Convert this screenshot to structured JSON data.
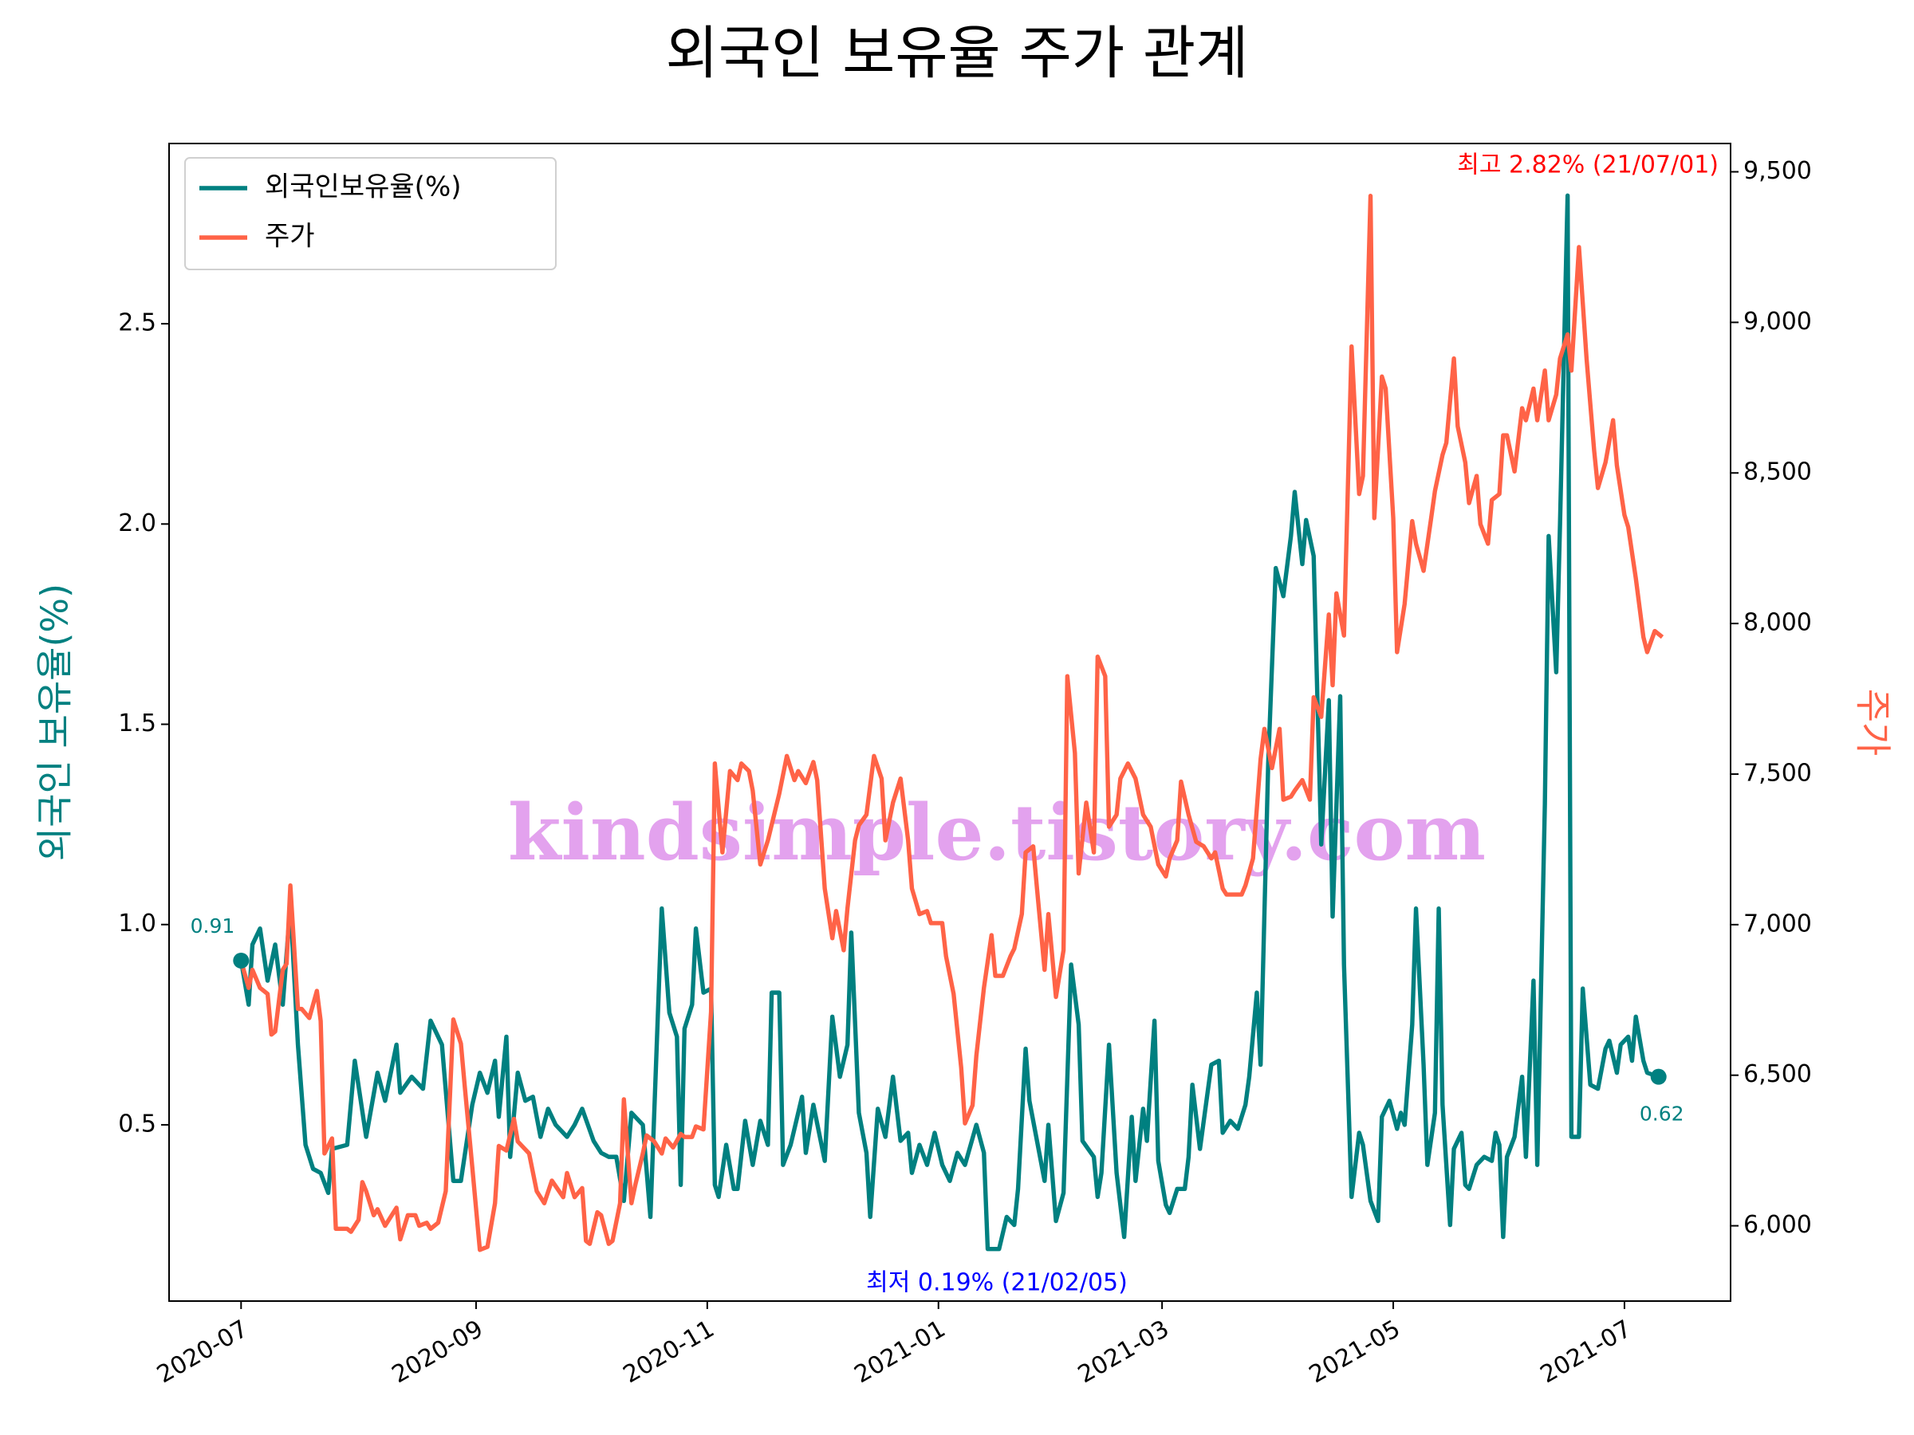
{
  "chart_data": {
    "type": "line",
    "title": "외국인 보유율 주가 관계",
    "ylabel": "외국인 보유율(%)",
    "y2label": "주가",
    "watermark": "kindsimple.tistory.com",
    "annotations": [
      {
        "text": "최고 2.82% (21/07/01)",
        "color": "#ff0000"
      },
      {
        "text": "최저 0.19% (21/02/05)",
        "color": "#0000ff"
      }
    ],
    "legend": "upper left",
    "xlim": [
      "2020-06-12",
      "2021-07-29"
    ],
    "xticks": [
      {
        "value": "2020-07-01",
        "label": "2020-07"
      },
      {
        "value": "2020-09-01",
        "label": "2020-09"
      },
      {
        "value": "2020-11-01",
        "label": "2020-11"
      },
      {
        "value": "2021-01-01",
        "label": "2021-01"
      },
      {
        "value": "2021-03-01",
        "label": "2021-03"
      },
      {
        "value": "2021-05-01",
        "label": "2021-05"
      },
      {
        "value": "2021-07-01",
        "label": "2021-07"
      }
    ],
    "ylim": [
      0.06,
      2.95
    ],
    "yticks": [
      0.5,
      {
        "value": 1,
        "label": "1.0"
      },
      1.5,
      {
        "value": 2,
        "label": "2.0"
      },
      2.5
    ],
    "y2lim": [
      5750,
      9594
    ],
    "y2ticks": [
      {
        "value": 6000,
        "label": "6,000"
      },
      {
        "value": 6500,
        "label": "6,500"
      },
      {
        "value": 7000,
        "label": "7,000"
      },
      {
        "value": 7500,
        "label": "7,500"
      },
      {
        "value": 8000,
        "label": "8,000"
      },
      {
        "value": 8500,
        "label": "8,500"
      },
      {
        "value": 9000,
        "label": "9,000"
      },
      {
        "value": 9500,
        "label": "9,500"
      }
    ],
    "series": [
      {
        "name": "외국인보유율(%)",
        "color": "#008080",
        "axis": "y",
        "x": [
          "2020-07-01",
          "2020-07-03",
          "2020-07-04",
          "2020-07-06",
          "2020-07-08",
          "2020-07-10",
          "2020-07-12",
          "2020-07-14",
          "2020-07-16",
          "2020-07-18",
          "2020-07-20",
          "2020-07-22",
          "2020-07-24",
          "2020-07-25",
          "2020-07-29",
          "2020-07-31",
          "2020-08-03",
          "2020-08-06",
          "2020-08-08",
          "2020-08-11",
          "2020-08-12",
          "2020-08-15",
          "2020-08-18",
          "2020-08-20",
          "2020-08-23",
          "2020-08-26",
          "2020-08-28",
          "2020-08-31",
          "2020-09-02",
          "2020-09-04",
          "2020-09-06",
          "2020-09-07",
          "2020-09-09",
          "2020-09-10",
          "2020-09-12",
          "2020-09-14",
          "2020-09-16",
          "2020-09-18",
          "2020-09-20",
          "2020-09-22",
          "2020-09-25",
          "2020-09-27",
          "2020-09-29",
          "2020-10-02",
          "2020-10-04",
          "2020-10-06",
          "2020-10-08",
          "2020-10-10",
          "2020-10-12",
          "2020-10-15",
          "2020-10-17",
          "2020-10-20",
          "2020-10-22",
          "2020-10-24",
          "2020-10-25",
          "2020-10-26",
          "2020-10-28",
          "2020-10-29",
          "2020-10-31",
          "2020-11-02",
          "2020-11-03",
          "2020-11-04",
          "2020-11-06",
          "2020-11-08",
          "2020-11-09",
          "2020-11-11",
          "2020-11-13",
          "2020-11-15",
          "2020-11-17",
          "2020-11-18",
          "2020-11-20",
          "2020-11-21",
          "2020-11-23",
          "2020-11-26",
          "2020-11-27",
          "2020-11-29",
          "2020-12-02",
          "2020-12-04",
          "2020-12-06",
          "2020-12-08",
          "2020-12-09",
          "2020-12-11",
          "2020-12-13",
          "2020-12-14",
          "2020-12-16",
          "2020-12-18",
          "2020-12-20",
          "2020-12-22",
          "2020-12-24",
          "2020-12-25",
          "2020-12-27",
          "2020-12-29",
          "2020-12-31",
          "2021-01-02",
          "2021-01-04",
          "2021-01-06",
          "2021-01-08",
          "2021-01-11",
          "2021-01-13",
          "2021-01-14",
          "2021-01-17",
          "2021-01-19",
          "2021-01-21",
          "2021-01-22",
          "2021-01-24",
          "2021-01-25",
          "2021-01-29",
          "2021-01-30",
          "2021-02-01",
          "2021-02-03",
          "2021-02-05",
          "2021-02-07",
          "2021-02-08",
          "2021-02-11",
          "2021-02-12",
          "2021-02-13",
          "2021-02-15",
          "2021-02-17",
          "2021-02-19",
          "2021-02-21",
          "2021-02-22",
          "2021-02-24",
          "2021-02-25",
          "2021-02-27",
          "2021-02-28",
          "2021-03-02",
          "2021-03-03",
          "2021-03-05",
          "2021-03-07",
          "2021-03-08",
          "2021-03-09",
          "2021-03-11",
          "2021-03-14",
          "2021-03-16",
          "2021-03-17",
          "2021-03-19",
          "2021-03-21",
          "2021-03-23",
          "2021-03-24",
          "2021-03-26",
          "2021-03-27",
          "2021-03-29",
          "2021-03-31",
          "2021-04-02",
          "2021-04-04",
          "2021-04-05",
          "2021-04-07",
          "2021-04-08",
          "2021-04-10",
          "2021-04-12",
          "2021-04-14",
          "2021-04-15",
          "2021-04-17",
          "2021-04-18",
          "2021-04-20",
          "2021-04-22",
          "2021-04-23",
          "2021-04-25",
          "2021-04-27",
          "2021-04-28",
          "2021-04-30",
          "2021-05-02",
          "2021-05-03",
          "2021-05-04",
          "2021-05-06",
          "2021-05-07",
          "2021-05-09",
          "2021-05-10",
          "2021-05-12",
          "2021-05-13",
          "2021-05-14",
          "2021-05-16",
          "2021-05-17",
          "2021-05-19",
          "2021-05-20",
          "2021-05-21",
          "2021-05-23",
          "2021-05-25",
          "2021-05-27",
          "2021-05-28",
          "2021-05-29",
          "2021-05-30",
          "2021-05-31",
          "2021-06-02",
          "2021-06-04",
          "2021-06-05",
          "2021-06-07",
          "2021-06-08",
          "2021-06-10",
          "2021-06-11",
          "2021-06-13",
          "2021-06-14",
          "2021-06-16",
          "2021-06-17",
          "2021-06-19",
          "2021-06-20",
          "2021-06-22",
          "2021-06-24",
          "2021-06-26",
          "2021-06-27",
          "2021-06-29",
          "2021-06-30",
          "2021-07-02",
          "2021-07-03",
          "2021-07-04",
          "2021-07-06",
          "2021-07-07",
          "2021-07-10"
        ],
        "values": [
          0.91,
          0.8,
          0.95,
          0.99,
          0.86,
          0.95,
          0.8,
          1.05,
          0.7,
          0.45,
          0.39,
          0.38,
          0.33,
          0.44,
          0.45,
          0.66,
          0.47,
          0.63,
          0.56,
          0.7,
          0.58,
          0.62,
          0.59,
          0.76,
          0.7,
          0.36,
          0.36,
          0.55,
          0.63,
          0.58,
          0.66,
          0.52,
          0.72,
          0.42,
          0.63,
          0.56,
          0.57,
          0.47,
          0.54,
          0.5,
          0.47,
          0.5,
          0.54,
          0.46,
          0.43,
          0.42,
          0.42,
          0.31,
          0.53,
          0.5,
          0.27,
          1.04,
          0.78,
          0.72,
          0.35,
          0.74,
          0.8,
          0.99,
          0.83,
          0.84,
          0.35,
          0.32,
          0.45,
          0.34,
          0.34,
          0.51,
          0.4,
          0.51,
          0.45,
          0.83,
          0.83,
          0.4,
          0.45,
          0.57,
          0.43,
          0.55,
          0.41,
          0.77,
          0.62,
          0.7,
          0.98,
          0.53,
          0.43,
          0.27,
          0.54,
          0.47,
          0.62,
          0.46,
          0.48,
          0.38,
          0.45,
          0.4,
          0.48,
          0.4,
          0.36,
          0.43,
          0.4,
          0.5,
          0.43,
          0.19,
          0.19,
          0.27,
          0.25,
          0.34,
          0.69,
          0.56,
          0.36,
          0.5,
          0.26,
          0.33,
          0.9,
          0.75,
          0.46,
          0.42,
          0.32,
          0.38,
          0.7,
          0.38,
          0.22,
          0.52,
          0.36,
          0.54,
          0.46,
          0.76,
          0.41,
          0.3,
          0.28,
          0.34,
          0.34,
          0.42,
          0.6,
          0.44,
          0.65,
          0.66,
          0.48,
          0.51,
          0.49,
          0.55,
          0.62,
          0.83,
          0.65,
          1.4,
          1.89,
          1.82,
          1.97,
          2.08,
          1.9,
          2.01,
          1.92,
          1.2,
          1.56,
          1.02,
          1.57,
          0.9,
          0.32,
          0.48,
          0.45,
          0.31,
          0.26,
          0.52,
          0.56,
          0.49,
          0.53,
          0.5,
          0.75,
          1.04,
          0.65,
          0.4,
          0.53,
          1.04,
          0.55,
          0.25,
          0.44,
          0.48,
          0.35,
          0.34,
          0.4,
          0.42,
          0.41,
          0.48,
          0.45,
          0.22,
          0.42,
          0.47,
          0.62,
          0.42,
          0.86,
          0.4,
          1.3,
          1.97,
          1.63,
          2.0,
          2.82,
          0.47,
          0.47,
          0.84,
          0.6,
          0.59,
          0.69,
          0.71,
          0.63,
          0.7,
          0.72,
          0.66,
          0.77,
          0.66,
          0.63,
          0.62
        ]
      },
      {
        "name": "주가",
        "color": "#ff6347",
        "axis": "y2",
        "x": [
          "2020-07-01",
          "2020-07-03",
          "2020-07-04",
          "2020-07-06",
          "2020-07-08",
          "2020-07-09",
          "2020-07-10",
          "2020-07-12",
          "2020-07-13",
          "2020-07-14",
          "2020-07-16",
          "2020-07-17",
          "2020-07-19",
          "2020-07-21",
          "2020-07-22",
          "2020-07-23",
          "2020-07-25",
          "2020-07-26",
          "2020-07-29",
          "2020-07-30",
          "2020-08-01",
          "2020-08-02",
          "2020-08-03",
          "2020-08-05",
          "2020-08-06",
          "2020-08-08",
          "2020-08-11",
          "2020-08-12",
          "2020-08-14",
          "2020-08-16",
          "2020-08-17",
          "2020-08-19",
          "2020-08-20",
          "2020-08-22",
          "2020-08-24",
          "2020-08-26",
          "2020-08-28",
          "2020-08-29",
          "2020-08-31",
          "2020-09-02",
          "2020-09-04",
          "2020-09-06",
          "2020-09-07",
          "2020-09-09",
          "2020-09-11",
          "2020-09-12",
          "2020-09-15",
          "2020-09-17",
          "2020-09-19",
          "2020-09-21",
          "2020-09-24",
          "2020-09-25",
          "2020-09-27",
          "2020-09-29",
          "2020-09-30",
          "2020-10-01",
          "2020-10-03",
          "2020-10-04",
          "2020-10-06",
          "2020-10-07",
          "2020-10-09",
          "2020-10-10",
          "2020-10-12",
          "2020-10-13",
          "2020-10-15",
          "2020-10-16",
          "2020-10-18",
          "2020-10-20",
          "2020-10-21",
          "2020-10-23",
          "2020-10-25",
          "2020-10-26",
          "2020-10-28",
          "2020-10-29",
          "2020-10-31",
          "2020-11-02",
          "2020-11-03",
          "2020-11-05",
          "2020-11-07",
          "2020-11-09",
          "2020-11-10",
          "2020-11-12",
          "2020-11-13",
          "2020-11-15",
          "2020-11-17",
          "2020-11-20",
          "2020-11-22",
          "2020-11-24",
          "2020-11-25",
          "2020-11-27",
          "2020-11-29",
          "2020-11-30",
          "2020-12-02",
          "2020-12-04",
          "2020-12-05",
          "2020-12-07",
          "2020-12-08",
          "2020-12-10",
          "2020-12-11",
          "2020-12-13",
          "2020-12-15",
          "2020-12-17",
          "2020-12-18",
          "2020-12-20",
          "2020-12-22",
          "2020-12-24",
          "2020-12-25",
          "2020-12-27",
          "2020-12-29",
          "2020-12-30",
          "2021-01-02",
          "2021-01-03",
          "2021-01-05",
          "2021-01-07",
          "2021-01-08",
          "2021-01-10",
          "2021-01-11",
          "2021-01-13",
          "2021-01-15",
          "2021-01-16",
          "2021-01-18",
          "2021-01-20",
          "2021-01-21",
          "2021-01-23",
          "2021-01-24",
          "2021-01-26",
          "2021-01-27",
          "2021-01-29",
          "2021-01-30",
          "2021-02-01",
          "2021-02-03",
          "2021-02-04",
          "2021-02-06",
          "2021-02-07",
          "2021-02-09",
          "2021-02-11",
          "2021-02-12",
          "2021-02-14",
          "2021-02-15",
          "2021-02-17",
          "2021-02-18",
          "2021-02-20",
          "2021-02-22",
          "2021-02-24",
          "2021-02-26",
          "2021-02-28",
          "2021-03-02",
          "2021-03-03",
          "2021-03-05",
          "2021-03-06",
          "2021-03-08",
          "2021-03-10",
          "2021-03-12",
          "2021-03-14",
          "2021-03-15",
          "2021-03-17",
          "2021-03-18",
          "2021-03-20",
          "2021-03-22",
          "2021-03-23",
          "2021-03-25",
          "2021-03-27",
          "2021-03-28",
          "2021-03-30",
          "2021-04-01",
          "2021-04-02",
          "2021-04-04",
          "2021-04-05",
          "2021-04-07",
          "2021-04-09",
          "2021-04-10",
          "2021-04-12",
          "2021-04-14",
          "2021-04-15",
          "2021-04-16",
          "2021-04-18",
          "2021-04-20",
          "2021-04-22",
          "2021-04-23",
          "2021-04-25",
          "2021-04-26",
          "2021-04-28",
          "2021-04-29",
          "2021-05-01",
          "2021-05-02",
          "2021-05-04",
          "2021-05-06",
          "2021-05-07",
          "2021-05-09",
          "2021-05-11",
          "2021-05-12",
          "2021-05-14",
          "2021-05-15",
          "2021-05-17",
          "2021-05-18",
          "2021-05-20",
          "2021-05-21",
          "2021-05-23",
          "2021-05-24",
          "2021-05-26",
          "2021-05-27",
          "2021-05-29",
          "2021-05-30",
          "2021-05-31",
          "2021-06-02",
          "2021-06-04",
          "2021-06-05",
          "2021-06-07",
          "2021-06-08",
          "2021-06-10",
          "2021-06-11",
          "2021-06-13",
          "2021-06-14",
          "2021-06-16",
          "2021-06-17",
          "2021-06-19",
          "2021-06-21",
          "2021-06-23",
          "2021-06-24",
          "2021-06-26",
          "2021-06-28",
          "2021-06-29",
          "2021-07-01",
          "2021-07-02",
          "2021-07-04",
          "2021-07-06",
          "2021-07-07",
          "2021-07-09",
          "2021-07-11"
        ],
        "values": [
          6880,
          6790,
          6850,
          6790,
          6770,
          6635,
          6645,
          6850,
          6870,
          7130,
          6720,
          6720,
          6690,
          6780,
          6680,
          6240,
          6290,
          5990,
          5990,
          5980,
          6020,
          6145,
          6115,
          6035,
          6055,
          6000,
          6060,
          5955,
          6035,
          6035,
          6000,
          6010,
          5990,
          6010,
          6115,
          6685,
          6605,
          6465,
          6195,
          5920,
          5930,
          6075,
          6265,
          6250,
          6355,
          6280,
          6240,
          6115,
          6075,
          6150,
          6095,
          6175,
          6095,
          6125,
          5950,
          5940,
          6045,
          6035,
          5940,
          5950,
          6075,
          6420,
          6075,
          6135,
          6240,
          6300,
          6280,
          6240,
          6290,
          6260,
          6305,
          6295,
          6295,
          6330,
          6320,
          6710,
          7535,
          7240,
          7510,
          7480,
          7535,
          7510,
          7445,
          7200,
          7280,
          7435,
          7560,
          7480,
          7510,
          7470,
          7540,
          7480,
          7120,
          6955,
          7045,
          6915,
          7055,
          7280,
          7330,
          7365,
          7560,
          7485,
          7280,
          7405,
          7485,
          7280,
          7120,
          7035,
          7045,
          7005,
          7005,
          6895,
          6770,
          6525,
          6340,
          6400,
          6565,
          6790,
          6965,
          6830,
          6830,
          6895,
          6920,
          7035,
          7240,
          7260,
          7120,
          6850,
          7035,
          6760,
          6915,
          7825,
          7570,
          7170,
          7405,
          7240,
          7890,
          7825,
          7325,
          7365,
          7485,
          7535,
          7485,
          7365,
          7325,
          7200,
          7160,
          7220,
          7280,
          7475,
          7365,
          7275,
          7260,
          7220,
          7240,
          7120,
          7100,
          7100,
          7100,
          7130,
          7220,
          7550,
          7650,
          7520,
          7650,
          7415,
          7425,
          7445,
          7480,
          7415,
          7755,
          7690,
          8030,
          7795,
          8100,
          7960,
          8920,
          8430,
          8490,
          9420,
          8350,
          8820,
          8780,
          8350,
          7905,
          8065,
          8340,
          8265,
          8175,
          8350,
          8440,
          8560,
          8600,
          8880,
          8655,
          8535,
          8400,
          8490,
          8330,
          8265,
          8410,
          8430,
          8625,
          8625,
          8505,
          8715,
          8675,
          8780,
          8675,
          8840,
          8675,
          8760,
          8880,
          8960,
          8840,
          9250,
          8880,
          8575,
          8450,
          8535,
          8675,
          8525,
          8360,
          8320,
          8150,
          7955,
          7905,
          7975,
          7955
        ]
      }
    ]
  }
}
